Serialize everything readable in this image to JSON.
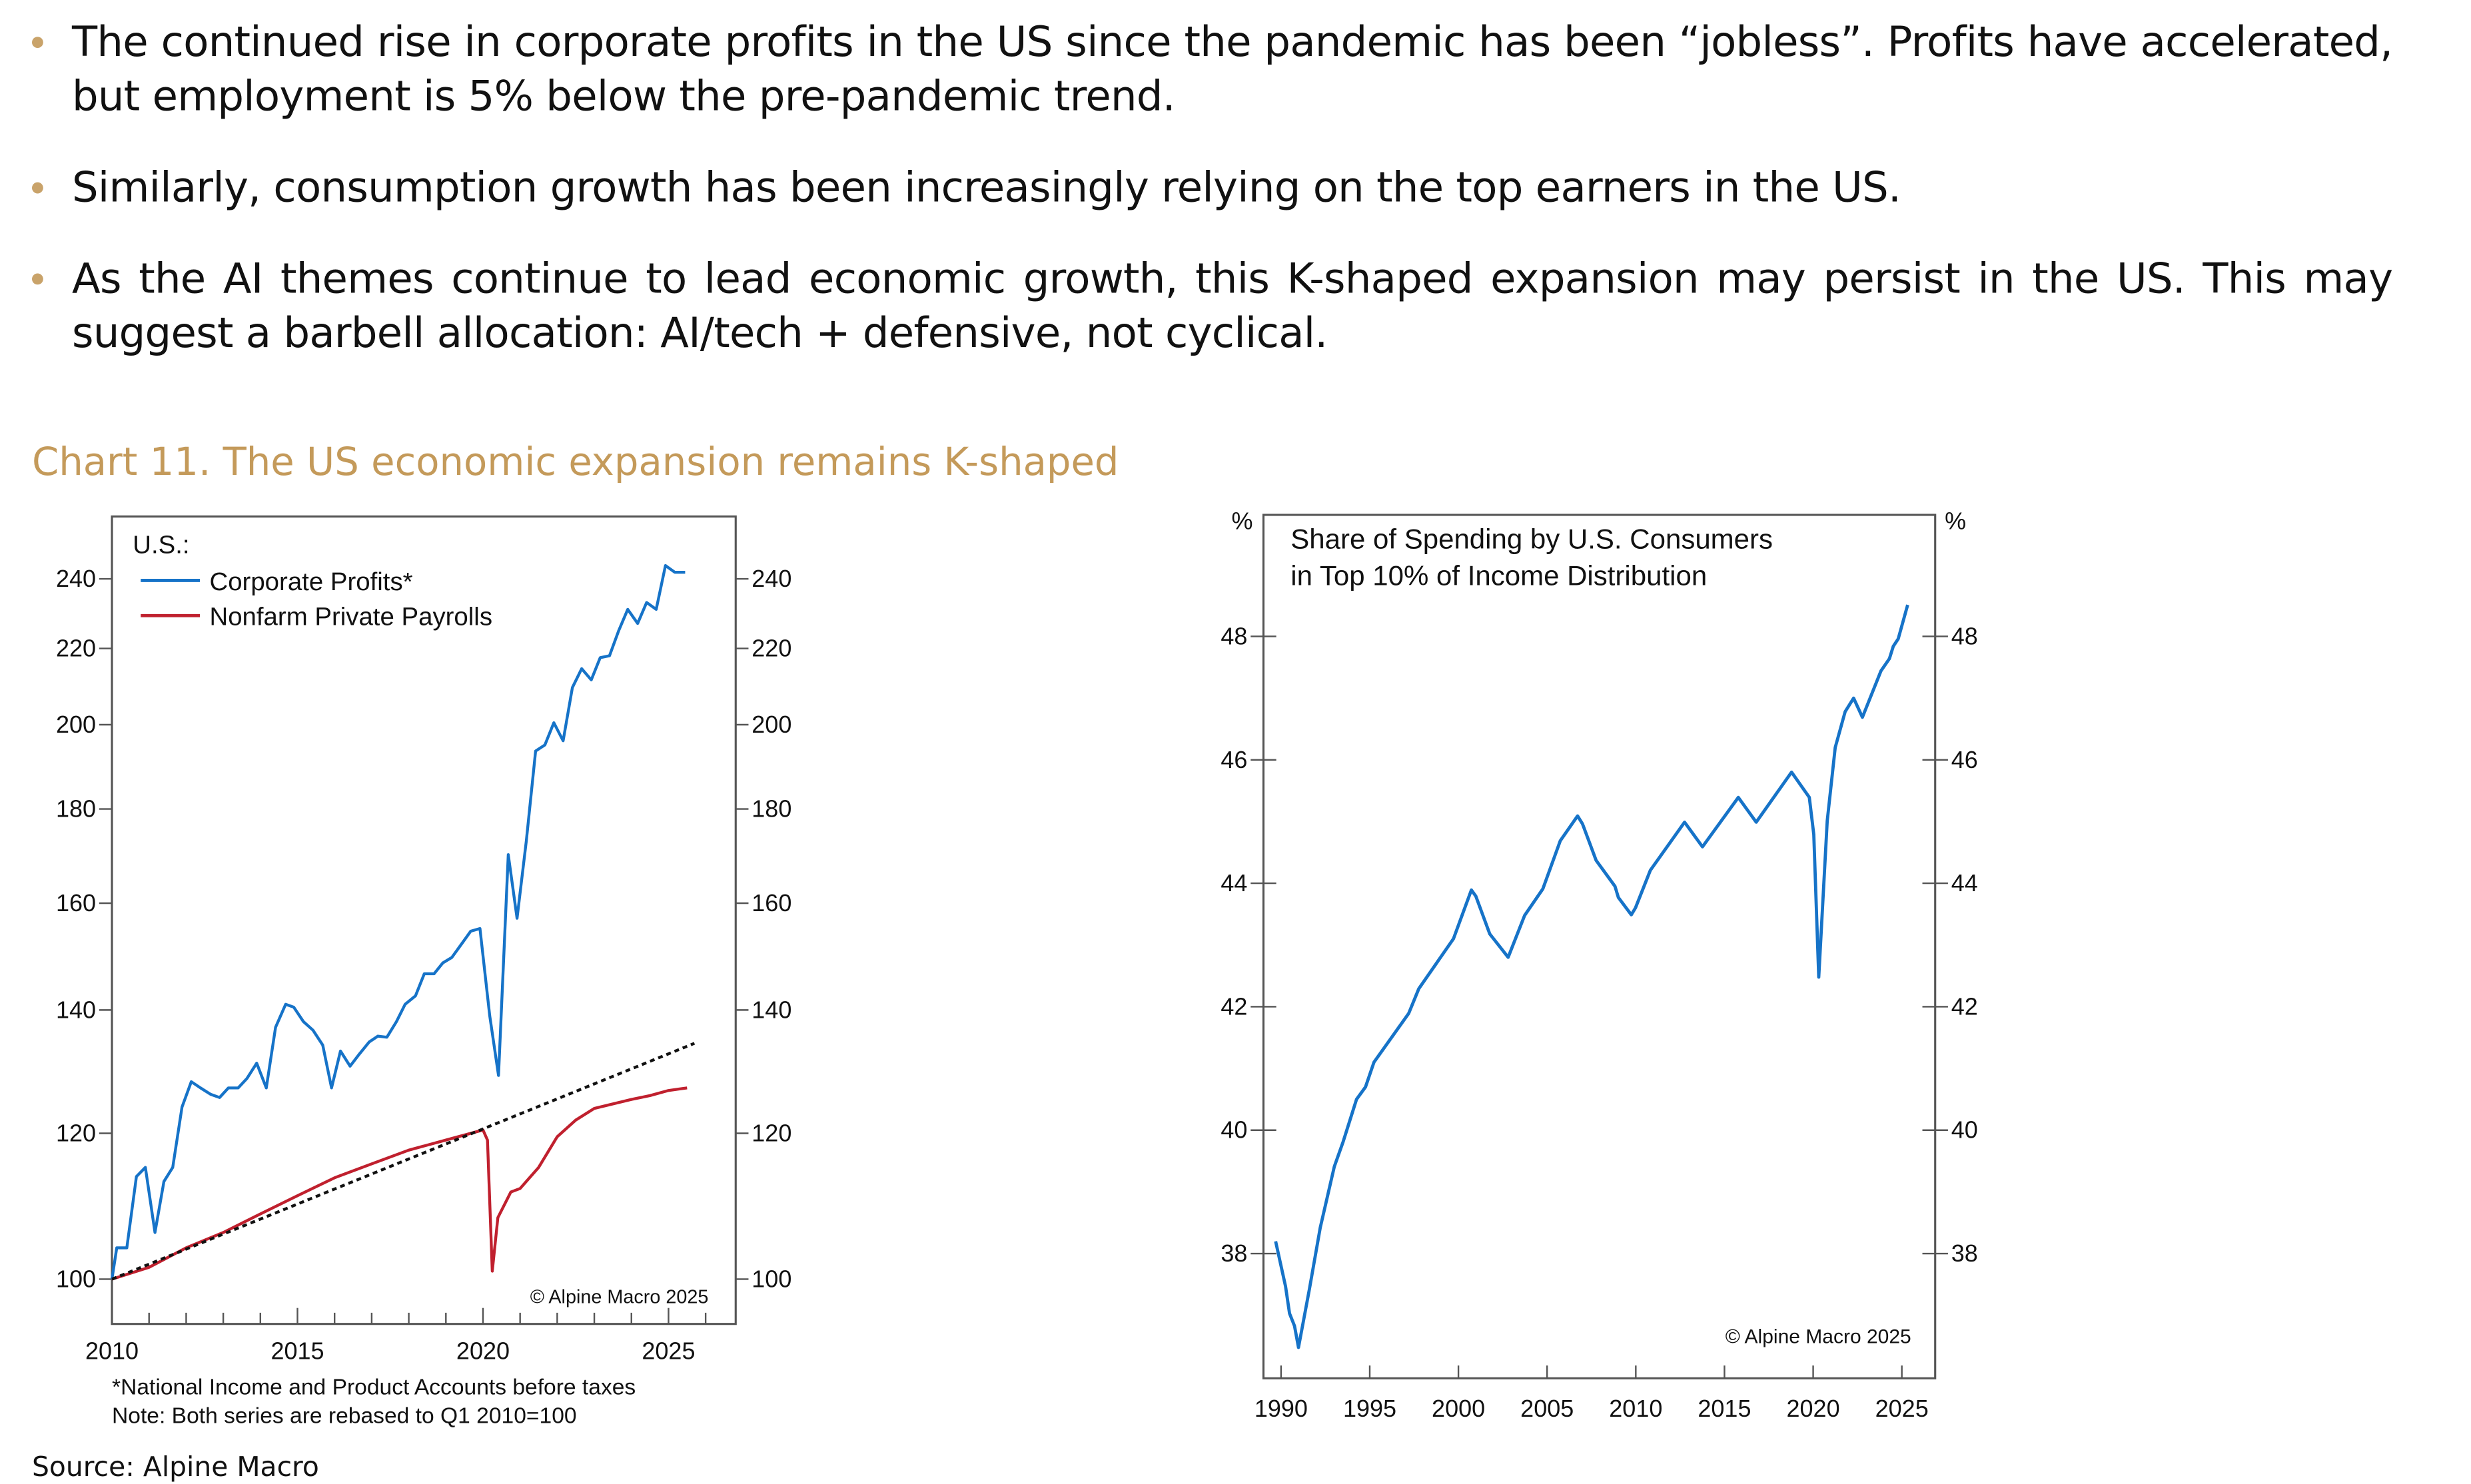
{
  "bullets": [
    "The continued rise in corporate profits in the US since the pandemic has been “jobless”. Profits have accelerated, but employment is 5% below the pre-pandemic trend.",
    "Similarly, consumption growth has been increasingly relying on the top earners in the US.",
    "As the AI themes continue to lead economic growth, this K-shaped expansion may persist in the US. This may suggest a barbell allocation: AI/tech + defensive, not cyclical."
  ],
  "chart_title": "Chart 11. The US economic expansion remains K-shaped",
  "source": "Source: Alpine Macro",
  "colors": {
    "accent": "#c49a5a",
    "blue": "#1673c8",
    "red": "#c0202e",
    "trend": "#111111"
  },
  "chart_data": [
    {
      "type": "line",
      "legend_title": "U.S.:",
      "y_scale": "log",
      "xlim": [
        2010,
        2026.8
      ],
      "ylim": [
        94.5,
        259
      ],
      "x_ticks": [
        "2010",
        "2015",
        "2020",
        "2025"
      ],
      "y_ticks": [
        "100",
        "120",
        "140",
        "160",
        "180",
        "200",
        "220",
        "240"
      ],
      "legend_placement": "top-left",
      "grid": false,
      "copyright": "© Alpine Macro 2025",
      "footnotes": [
        "*National Income and Product Accounts before taxes",
        "Note: Both series are rebased to Q1 2010=100"
      ],
      "series": [
        {
          "name": "Corporate Profits*",
          "color": "#1673c8",
          "points": [
            [
              2010.0,
              100
            ],
            [
              2010.13,
              104
            ],
            [
              2010.4,
              104
            ],
            [
              2010.66,
              113.7
            ],
            [
              2010.9,
              115
            ],
            [
              2011.16,
              106
            ],
            [
              2011.4,
              113
            ],
            [
              2011.64,
              115
            ],
            [
              2011.89,
              124
            ],
            [
              2012.14,
              128
            ],
            [
              2012.39,
              127
            ],
            [
              2012.66,
              126
            ],
            [
              2012.9,
              125.5
            ],
            [
              2013.14,
              127
            ],
            [
              2013.4,
              127
            ],
            [
              2013.64,
              128.5
            ],
            [
              2013.9,
              131
            ],
            [
              2014.16,
              127
            ],
            [
              2014.41,
              137
            ],
            [
              2014.68,
              141
            ],
            [
              2014.9,
              140.5
            ],
            [
              2015.16,
              138
            ],
            [
              2015.42,
              136.5
            ],
            [
              2015.68,
              134
            ],
            [
              2015.92,
              127
            ],
            [
              2016.16,
              133
            ],
            [
              2016.42,
              130.5
            ],
            [
              2016.67,
              132.5
            ],
            [
              2016.93,
              134.5
            ],
            [
              2017.17,
              135.5
            ],
            [
              2017.41,
              135.3
            ],
            [
              2017.67,
              138
            ],
            [
              2017.9,
              141
            ],
            [
              2018.18,
              142.5
            ],
            [
              2018.42,
              146.5
            ],
            [
              2018.68,
              146.5
            ],
            [
              2018.92,
              148.5
            ],
            [
              2019.16,
              149.5
            ],
            [
              2019.42,
              152
            ],
            [
              2019.67,
              154.5
            ],
            [
              2019.92,
              155
            ],
            [
              2020.18,
              139
            ],
            [
              2020.42,
              129
            ],
            [
              2020.68,
              170
            ],
            [
              2020.92,
              157
            ],
            [
              2021.17,
              173
            ],
            [
              2021.42,
              193.5
            ],
            [
              2021.67,
              195
            ],
            [
              2021.91,
              200.5
            ],
            [
              2022.16,
              196
            ],
            [
              2022.41,
              209.5
            ],
            [
              2022.66,
              214.5
            ],
            [
              2022.92,
              211.5
            ],
            [
              2023.16,
              217.5
            ],
            [
              2023.41,
              218
            ],
            [
              2023.66,
              225
            ],
            [
              2023.9,
              231
            ],
            [
              2024.17,
              227
            ],
            [
              2024.41,
              233
            ],
            [
              2024.67,
              231
            ],
            [
              2024.92,
              244
            ],
            [
              2025.17,
              242
            ],
            [
              2025.45,
              242
            ]
          ]
        },
        {
          "name": "Nonfarm Private Payrolls",
          "color": "#c0202e",
          "points": [
            [
              2010,
              100
            ],
            [
              2011,
              101.5
            ],
            [
              2012,
              104
            ],
            [
              2013,
              106
            ],
            [
              2014,
              108.5
            ],
            [
              2015,
              111
            ],
            [
              2016,
              113.5
            ],
            [
              2017,
              115.5
            ],
            [
              2018,
              117.5
            ],
            [
              2019,
              119
            ],
            [
              2020.0,
              120.5
            ],
            [
              2020.12,
              119
            ],
            [
              2020.25,
              101
            ],
            [
              2020.4,
              108
            ],
            [
              2020.75,
              111.5
            ],
            [
              2021,
              112
            ],
            [
              2021.5,
              115
            ],
            [
              2022,
              119.5
            ],
            [
              2022.5,
              122
            ],
            [
              2023,
              123.8
            ],
            [
              2023.5,
              124.5
            ],
            [
              2024,
              125.2
            ],
            [
              2024.5,
              125.8
            ],
            [
              2025,
              126.6
            ],
            [
              2025.5,
              127
            ]
          ]
        },
        {
          "style": "dotted",
          "color": "#111111",
          "points": [
            [
              2010,
              100
            ],
            [
              2025.7,
              134.3
            ]
          ]
        }
      ]
    },
    {
      "type": "line",
      "title": "Share of Spending by U.S. Consumers in Top 10% of Income Distribution",
      "unit": "%",
      "xlim": [
        1989,
        2027
      ],
      "ylim": [
        36,
        50
      ],
      "x_ticks": [
        "1990",
        "1995",
        "2000",
        "2005",
        "2010",
        "2015",
        "2020",
        "2025"
      ],
      "y_ticks": [
        "38",
        "40",
        "42",
        "44",
        "46",
        "48"
      ],
      "grid": false,
      "copyright": "© Alpine Macro 2025",
      "series": [
        {
          "color": "#1673c8",
          "points": [
            [
              1989.69,
              38.2
            ],
            [
              1990.25,
              37.47
            ],
            [
              1990.48,
              37.03
            ],
            [
              1990.76,
              36.83
            ],
            [
              1990.98,
              36.48
            ],
            [
              1991.6,
              37.42
            ],
            [
              1992.21,
              38.42
            ],
            [
              1993.0,
              39.41
            ],
            [
              1993.5,
              39.81
            ],
            [
              1994.26,
              40.5
            ],
            [
              1994.76,
              40.7
            ],
            [
              1995.24,
              41.1
            ],
            [
              1997.2,
              41.89
            ],
            [
              1997.76,
              42.29
            ],
            [
              1999.72,
              43.1
            ],
            [
              2000.73,
              43.89
            ],
            [
              2000.98,
              43.79
            ],
            [
              2001.77,
              43.18
            ],
            [
              2002.8,
              42.8
            ],
            [
              2003.73,
              43.48
            ],
            [
              2004.76,
              43.91
            ],
            [
              2005.74,
              44.69
            ],
            [
              2006.72,
              45.09
            ],
            [
              2007.0,
              44.96
            ],
            [
              2007.76,
              44.37
            ],
            [
              2008.83,
              43.95
            ],
            [
              2009.02,
              43.77
            ],
            [
              2009.75,
              43.49
            ],
            [
              2009.98,
              43.6
            ],
            [
              2010.82,
              44.21
            ],
            [
              2012.75,
              44.99
            ],
            [
              2013.76,
              44.59
            ],
            [
              2015.78,
              45.39
            ],
            [
              2016.79,
              44.99
            ],
            [
              2018.78,
              45.8
            ],
            [
              2019.78,
              45.39
            ],
            [
              2020.04,
              44.79
            ],
            [
              2020.32,
              42.48
            ],
            [
              2020.79,
              45.01
            ],
            [
              2021.24,
              46.2
            ],
            [
              2021.8,
              46.78
            ],
            [
              2022.28,
              47.0
            ],
            [
              2022.78,
              46.69
            ],
            [
              2023.82,
              47.44
            ],
            [
              2024.3,
              47.64
            ],
            [
              2024.52,
              47.84
            ],
            [
              2024.8,
              47.96
            ],
            [
              2025.33,
              48.51
            ]
          ]
        }
      ]
    }
  ]
}
